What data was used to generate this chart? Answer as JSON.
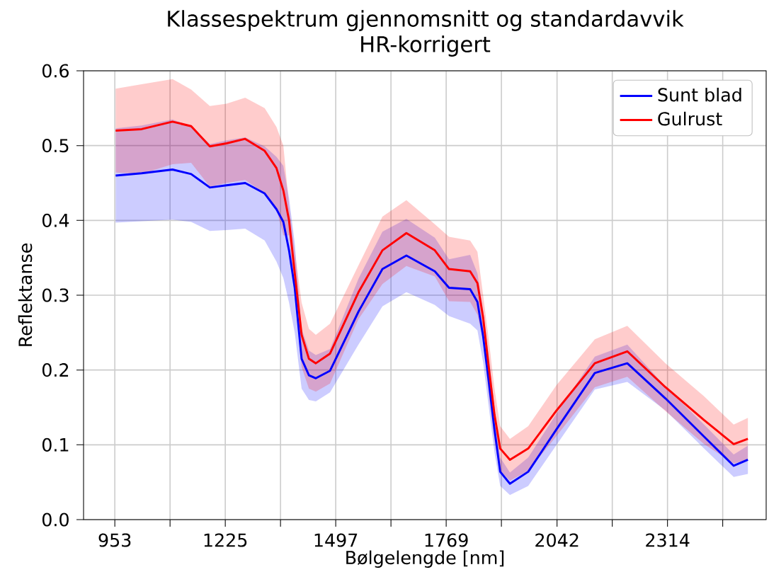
{
  "chart_data": {
    "type": "line",
    "title": "Klassespektrum gjennomsnitt og standardavvik",
    "subtitle": "HR-korrigert",
    "xlabel": "Bølgelengde [nm]",
    "ylabel": "Reflektanse",
    "x": [
      955,
      1019,
      1095,
      1141,
      1187,
      1228,
      1274,
      1322,
      1351,
      1368,
      1382,
      1396,
      1413,
      1431,
      1448,
      1483,
      1553,
      1612,
      1671,
      1741,
      1776,
      1828,
      1846,
      1860,
      1874,
      1888,
      1902,
      1926,
      1971,
      2041,
      2135,
      2215,
      2309,
      2404,
      2477,
      2512
    ],
    "series": [
      {
        "name": "Sunt blad",
        "color": "#0000ff",
        "values": [
          0.46,
          0.463,
          0.468,
          0.462,
          0.444,
          0.447,
          0.45,
          0.436,
          0.415,
          0.398,
          0.36,
          0.31,
          0.215,
          0.193,
          0.189,
          0.199,
          0.278,
          0.335,
          0.353,
          0.332,
          0.31,
          0.308,
          0.291,
          0.245,
          0.184,
          0.12,
          0.064,
          0.048,
          0.064,
          0.121,
          0.196,
          0.209,
          0.162,
          0.111,
          0.072,
          0.08
        ],
        "lower": [
          0.397,
          0.399,
          0.401,
          0.398,
          0.386,
          0.387,
          0.389,
          0.373,
          0.345,
          0.323,
          0.29,
          0.25,
          0.175,
          0.16,
          0.158,
          0.17,
          0.234,
          0.285,
          0.304,
          0.287,
          0.272,
          0.262,
          0.253,
          0.21,
          0.15,
          0.09,
          0.045,
          0.033,
          0.045,
          0.1,
          0.174,
          0.184,
          0.146,
          0.095,
          0.057,
          0.061
        ],
        "upper": [
          0.523,
          0.527,
          0.535,
          0.526,
          0.502,
          0.507,
          0.511,
          0.499,
          0.485,
          0.473,
          0.43,
          0.37,
          0.255,
          0.226,
          0.22,
          0.228,
          0.322,
          0.385,
          0.402,
          0.377,
          0.348,
          0.354,
          0.329,
          0.28,
          0.218,
          0.15,
          0.083,
          0.063,
          0.083,
          0.142,
          0.218,
          0.234,
          0.178,
          0.127,
          0.087,
          0.099
        ]
      },
      {
        "name": "Gulrust",
        "color": "#ff0000",
        "values": [
          0.52,
          0.522,
          0.532,
          0.526,
          0.499,
          0.503,
          0.509,
          0.493,
          0.47,
          0.44,
          0.4,
          0.33,
          0.247,
          0.215,
          0.209,
          0.222,
          0.304,
          0.36,
          0.383,
          0.36,
          0.335,
          0.332,
          0.316,
          0.27,
          0.203,
          0.14,
          0.095,
          0.08,
          0.095,
          0.146,
          0.209,
          0.225,
          0.177,
          0.133,
          0.101,
          0.108
        ],
        "lower": [
          0.464,
          0.462,
          0.475,
          0.477,
          0.445,
          0.45,
          0.454,
          0.436,
          0.415,
          0.38,
          0.38,
          0.3,
          0.204,
          0.175,
          0.171,
          0.182,
          0.268,
          0.315,
          0.339,
          0.325,
          0.292,
          0.291,
          0.274,
          0.24,
          0.166,
          0.105,
          0.065,
          0.052,
          0.065,
          0.112,
          0.177,
          0.191,
          0.145,
          0.101,
          0.075,
          0.08
        ],
        "upper": [
          0.576,
          0.582,
          0.589,
          0.575,
          0.553,
          0.556,
          0.564,
          0.55,
          0.525,
          0.5,
          0.42,
          0.36,
          0.29,
          0.255,
          0.247,
          0.262,
          0.34,
          0.405,
          0.427,
          0.395,
          0.378,
          0.373,
          0.358,
          0.3,
          0.24,
          0.175,
          0.125,
          0.108,
          0.125,
          0.18,
          0.241,
          0.259,
          0.209,
          0.165,
          0.127,
          0.136
        ]
      }
    ],
    "xlim": [
      876,
      2557
    ],
    "xticks": [
      953,
      {
        "value": 1089,
        "label": null
      },
      1225,
      {
        "value": 1361,
        "label": null
      },
      1497,
      {
        "value": 1633,
        "label": null
      },
      1769,
      {
        "value": 1905,
        "label": null
      },
      2042,
      {
        "value": 2178,
        "label": null
      },
      2314,
      {
        "value": 2450,
        "label": null
      }
    ],
    "ylim": [
      0,
      0.6
    ],
    "yticks": [
      {
        "value": 0,
        "label": "0.0"
      },
      0.1,
      0.2,
      0.3,
      0.4,
      0.5,
      0.6
    ],
    "grid": true,
    "legend": "top right",
    "marker": "none",
    "line_style": "solid"
  }
}
